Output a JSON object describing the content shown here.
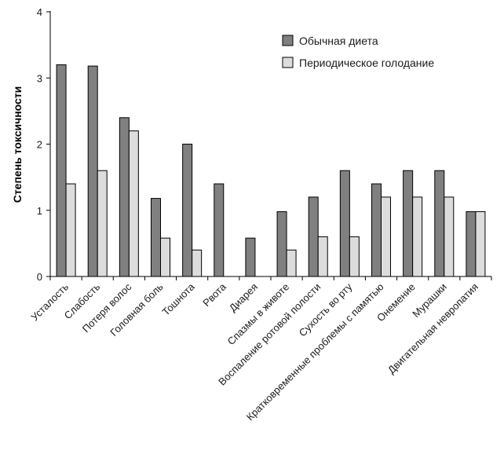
{
  "chart_data": {
    "type": "bar",
    "title": "",
    "xlabel": "",
    "ylabel": "Степень токсичности",
    "ylim": [
      0,
      4
    ],
    "yticks": [
      0,
      1,
      2,
      3,
      4
    ],
    "grid": false,
    "legend_position": "top-right",
    "categories": [
      "Усталость",
      "Слабость",
      "Потеря волос",
      "Головная боль",
      "Тошнота",
      "Рвота",
      "Диарея",
      "Спазмы в животе",
      "Воспаление ротовой полости",
      "Сухость во рту",
      "Кратковременные проблемы с памятью",
      "Онемение",
      "Мурашки",
      "Двигательная невропатия"
    ],
    "series": [
      {
        "name": "Обычная диета",
        "color": "#808080",
        "values": [
          3.2,
          3.18,
          2.4,
          1.18,
          2.0,
          1.4,
          0.58,
          0.98,
          1.2,
          1.6,
          1.4,
          1.6,
          1.6,
          0.98
        ]
      },
      {
        "name": "Периодическое голодание",
        "color": "#dcdcdc",
        "values": [
          1.4,
          1.6,
          2.2,
          0.58,
          0.4,
          0,
          0,
          0.4,
          0.6,
          0.6,
          1.2,
          1.2,
          1.2,
          0.98
        ]
      }
    ]
  }
}
